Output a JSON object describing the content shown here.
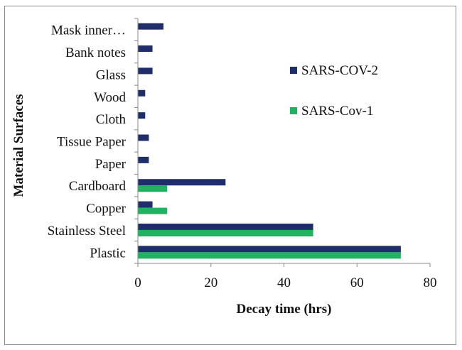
{
  "chart_data": {
    "type": "bar",
    "orientation": "horizontal",
    "xlabel": "Decay time (hrs)",
    "ylabel": "Material Surfaces",
    "xlim": [
      0,
      80
    ],
    "xticks": [
      "0",
      "20",
      "40",
      "60",
      "80"
    ],
    "grid": false,
    "legend_position": "right",
    "categories": [
      "Mask inner…",
      "Bank notes",
      "Glass",
      "Wood",
      "Cloth",
      "Tissue Paper",
      "Paper",
      "Cardboard",
      "Copper",
      "Stainless Steel",
      "Plastic"
    ],
    "series": [
      {
        "name": "SARS-COV-2",
        "color": "#1f2d6b",
        "values": [
          7,
          4,
          4,
          2,
          2,
          3,
          3,
          24,
          4,
          48,
          72
        ]
      },
      {
        "name": "SARS-Cov-1",
        "color": "#1db360",
        "values": [
          null,
          null,
          null,
          null,
          null,
          null,
          null,
          8,
          8,
          48,
          72
        ]
      }
    ]
  }
}
